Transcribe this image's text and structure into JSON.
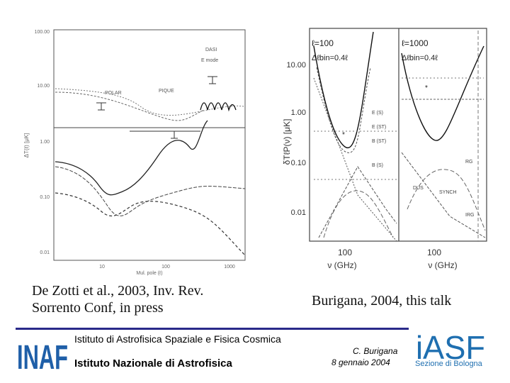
{
  "left_figure": {
    "y_ticks": [
      "100.00",
      "10.00",
      "1.00",
      "0.10",
      "0.01"
    ],
    "x_ticks": [
      "10",
      "100",
      "1000"
    ],
    "y_label": "ΔT(ℓ) [μK]",
    "x_label": "Mul. pole (ℓ)",
    "annotations": [
      "DASI",
      "E mode",
      "POLAR",
      "PIQUE"
    ]
  },
  "right_figure": {
    "panel_a_title": "ℓ=100",
    "panel_a_sub": "Δℓbin=0.4ℓ",
    "panel_b_title": "ℓ=1000",
    "panel_b_sub": "Δℓbin=0.4ℓ",
    "y_ticks": [
      "10.00",
      "1.00",
      "0.10",
      "0.01"
    ],
    "y_label": "δTℓP(ν) [μK]",
    "x_ticks": [
      "100",
      "100"
    ],
    "x_labels": [
      "ν (GHz)",
      "ν (GHz)"
    ],
    "curve_labels": [
      "E (S)",
      "E (ST)",
      "B (ST)",
      "B (S)",
      "RG",
      "DUS",
      "SYNCH",
      "IRG"
    ]
  },
  "captions": {
    "left": "De Zotti et al., 2003, Inv. Rev.\nSorrento Conf, in press",
    "right": "Burigana, 2004, this talk"
  },
  "footer": {
    "institute_line1": "Istituto di Astrofisica Spaziale e Fisica Cosmica",
    "institute_line2": "Istituto Nazionale di Astrofisica",
    "author": "C. Burigana",
    "date": "8 gennaio 2004",
    "inaf_logo": "INAF",
    "iasf_logo": "iASF",
    "iasf_section": "Sezione di Bologna",
    "colors": {
      "inaf_blue": "#1f5fa8",
      "rule": "#2a2a8a",
      "iasf_blue": "#1f6fb0"
    }
  }
}
